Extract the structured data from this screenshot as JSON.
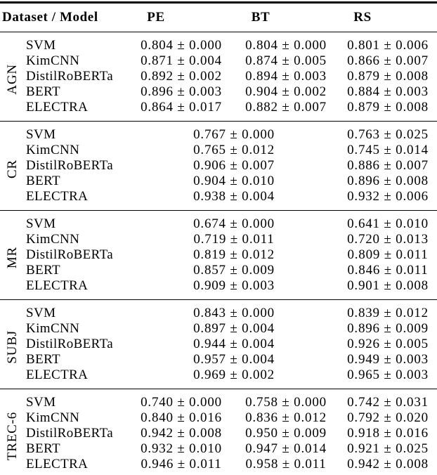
{
  "page": {
    "background": "#ffffff",
    "text_color": "#000000",
    "rule_color": "#000000"
  },
  "table": {
    "header": {
      "dataset_model": "Dataset / Model",
      "pe": "PE",
      "bt": "BT",
      "rs": "RS"
    },
    "blocks": [
      {
        "dataset": "AGN",
        "rows": [
          {
            "model": "SVM",
            "pe": "0.804 ± 0.000",
            "bt": "0.804 ± 0.000",
            "rs": "0.801 ± 0.006"
          },
          {
            "model": "KimCNN",
            "pe": "0.871 ± 0.004",
            "bt": "0.874 ± 0.005",
            "rs": "0.866 ± 0.007"
          },
          {
            "model": "DistilRoBERTa",
            "pe": "0.892 ± 0.002",
            "bt": "0.894 ± 0.003",
            "rs": "0.879 ± 0.008"
          },
          {
            "model": "BERT",
            "pe": "0.896 ± 0.003",
            "bt": "0.904 ± 0.002",
            "rs": "0.884 ± 0.003"
          },
          {
            "model": "ELECTRA",
            "pe": "0.864 ± 0.017",
            "bt": "0.882 ± 0.007",
            "rs": "0.879 ± 0.008"
          }
        ]
      },
      {
        "dataset": "CR",
        "rows": [
          {
            "model": "SVM",
            "pebt": "0.767 ± 0.000",
            "rs": "0.763 ± 0.025"
          },
          {
            "model": "KimCNN",
            "pebt": "0.765 ± 0.012",
            "rs": "0.745 ± 0.014"
          },
          {
            "model": "DistilRoBERTa",
            "pebt": "0.906 ± 0.007",
            "rs": "0.886 ± 0.007"
          },
          {
            "model": "BERT",
            "pebt": "0.904 ± 0.010",
            "rs": "0.896 ± 0.008"
          },
          {
            "model": "ELECTRA",
            "pebt": "0.938 ± 0.004",
            "rs": "0.932 ± 0.006"
          }
        ]
      },
      {
        "dataset": "MR",
        "rows": [
          {
            "model": "SVM",
            "pebt": "0.674 ± 0.000",
            "rs": "0.641 ± 0.010"
          },
          {
            "model": "KimCNN",
            "pebt": "0.719 ± 0.011",
            "rs": "0.720 ± 0.013"
          },
          {
            "model": "DistilRoBERTa",
            "pebt": "0.819 ± 0.012",
            "rs": "0.809 ± 0.011"
          },
          {
            "model": "BERT",
            "pebt": "0.857 ± 0.009",
            "rs": "0.846 ± 0.011"
          },
          {
            "model": "ELECTRA",
            "pebt": "0.909 ± 0.003",
            "rs": "0.901 ± 0.008"
          }
        ]
      },
      {
        "dataset": "SUBJ",
        "rows": [
          {
            "model": "SVM",
            "pebt": "0.843 ± 0.000",
            "rs": "0.839 ± 0.012"
          },
          {
            "model": "KimCNN",
            "pebt": "0.897 ± 0.004",
            "rs": "0.896 ± 0.009"
          },
          {
            "model": "DistilRoBERTa",
            "pebt": "0.944 ± 0.004",
            "rs": "0.926 ± 0.005"
          },
          {
            "model": "BERT",
            "pebt": "0.957 ± 0.004",
            "rs": "0.949 ± 0.003"
          },
          {
            "model": "ELECTRA",
            "pebt": "0.969 ± 0.002",
            "rs": "0.965 ± 0.003"
          }
        ]
      },
      {
        "dataset": "TREC-6",
        "rows": [
          {
            "model": "SVM",
            "pe": "0.740 ± 0.000",
            "bt": "0.758 ± 0.000",
            "rs": "0.742 ± 0.031"
          },
          {
            "model": "KimCNN",
            "pe": "0.840 ± 0.016",
            "bt": "0.836 ± 0.012",
            "rs": "0.792 ± 0.020"
          },
          {
            "model": "DistilRoBERTa",
            "pe": "0.942 ± 0.008",
            "bt": "0.950 ± 0.009",
            "rs": "0.918 ± 0.016"
          },
          {
            "model": "BERT",
            "pe": "0.932 ± 0.010",
            "bt": "0.947 ± 0.014",
            "rs": "0.921 ± 0.025"
          },
          {
            "model": "ELECTRA",
            "pe": "0.946 ± 0.011",
            "bt": "0.958 ± 0.011",
            "rs": "0.942 ± 0.008"
          }
        ]
      }
    ]
  }
}
